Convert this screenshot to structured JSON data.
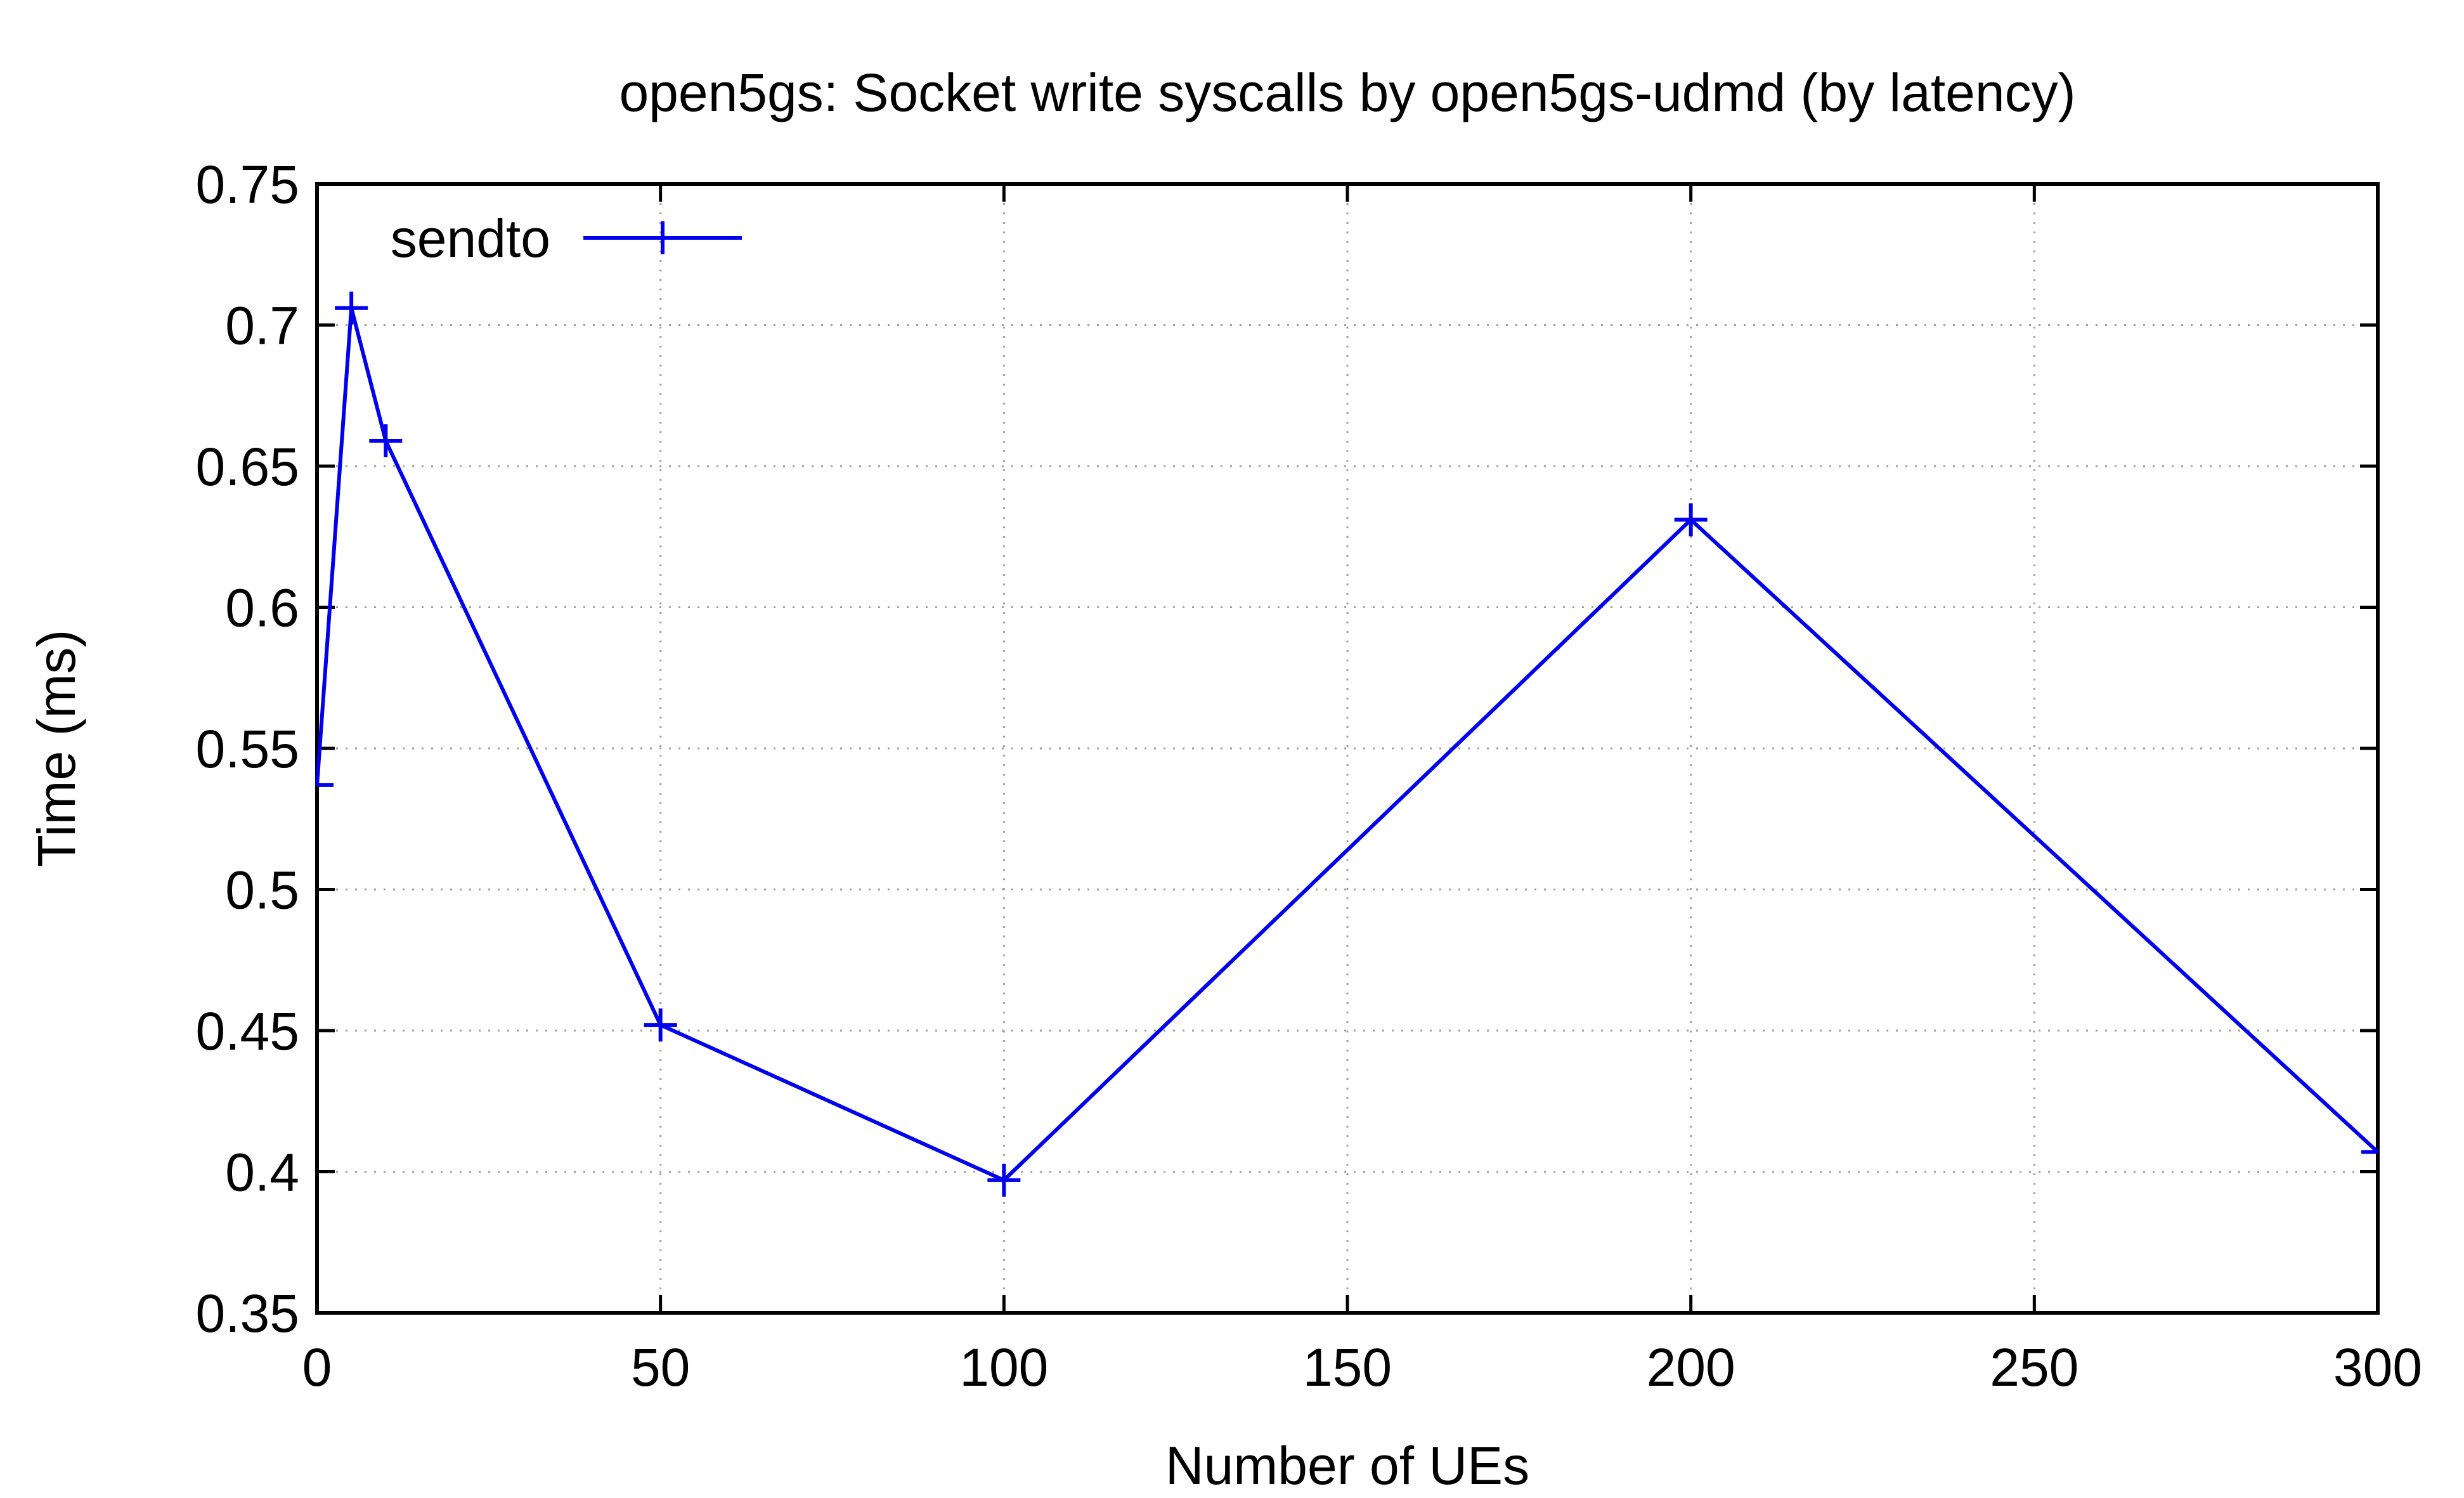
{
  "chart_data": {
    "type": "line",
    "title": "open5gs: Socket write syscalls by open5gs-udmd (by latency)",
    "xlabel": "Number of UEs",
    "ylabel": "Time (ms)",
    "xlim": [
      0,
      300
    ],
    "ylim": [
      0.35,
      0.75
    ],
    "x_ticks": [
      0,
      50,
      100,
      150,
      200,
      250,
      300
    ],
    "x_tick_labels": [
      "0",
      "50",
      "100",
      "150",
      "200",
      "250",
      "300"
    ],
    "y_ticks": [
      0.35,
      0.4,
      0.45,
      0.5,
      0.55,
      0.6,
      0.65,
      0.7,
      0.75
    ],
    "y_tick_labels": [
      "0.35",
      "0.4",
      "0.45",
      "0.5",
      "0.55",
      "0.6",
      "0.65",
      "0.7",
      "0.75"
    ],
    "grid": true,
    "legend_position": "top-left",
    "series": [
      {
        "name": "sendto",
        "color": "#0000ee",
        "marker": "plus",
        "x": [
          0,
          5,
          10,
          50,
          100,
          200,
          300
        ],
        "y": [
          0.537,
          0.706,
          0.659,
          0.452,
          0.397,
          0.631,
          0.407
        ]
      }
    ]
  }
}
